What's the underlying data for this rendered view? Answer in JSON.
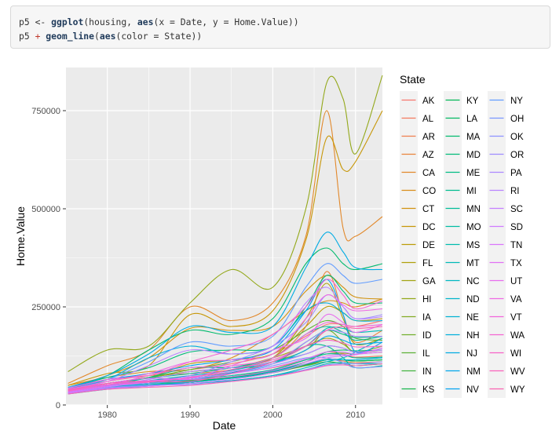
{
  "code": {
    "line1": {
      "assign": "p5 <- ",
      "fn1": "ggplot",
      "mid1": "(housing, ",
      "fn2": "aes",
      "end1": "(x = Date, y = Home.Value))"
    },
    "line2": {
      "obj": "p5 ",
      "plus": "+",
      "fn1": "geom_line",
      "mid": "(",
      "fn2": "aes",
      "end": "(color = State))"
    }
  },
  "chart_data": {
    "type": "line",
    "title": "",
    "xlabel": "Date",
    "ylabel": "Home.Value",
    "xlim": [
      1975.0,
      2013.25
    ],
    "ylim": [
      0,
      860000
    ],
    "x_ticks": [
      1980,
      1990,
      2000,
      2010
    ],
    "x_tick_labels": [
      "1980",
      "1990",
      "2000",
      "2010"
    ],
    "y_ticks": [
      0,
      250000,
      500000,
      750000
    ],
    "y_tick_labels": [
      "0",
      "250000",
      "500000",
      "750000"
    ],
    "grid": true,
    "legend": {
      "title": "State",
      "position": "right"
    },
    "x": [
      1975.25,
      1980,
      1985,
      1990,
      1995,
      2000,
      2004,
      2006.5,
      2008.5,
      2010,
      2013.25
    ],
    "series": [
      {
        "name": "AK",
        "color": "#F8766D",
        "values": [
          42000,
          60000,
          80000,
          90000,
          105000,
          130000,
          175000,
          205000,
          205000,
          200000,
          215000
        ]
      },
      {
        "name": "AL",
        "color": "#F47A5D",
        "values": [
          35000,
          50000,
          62000,
          72000,
          82000,
          95000,
          115000,
          135000,
          130000,
          122000,
          125000
        ]
      },
      {
        "name": "AR",
        "color": "#EF7E4D",
        "values": [
          32000,
          45000,
          55000,
          63000,
          72000,
          84000,
          100000,
          115000,
          112000,
          108000,
          110000
        ]
      },
      {
        "name": "AZ",
        "color": "#E9833B",
        "values": [
          40000,
          60000,
          75000,
          80000,
          90000,
          120000,
          200000,
          340000,
          230000,
          160000,
          190000
        ]
      },
      {
        "name": "CA",
        "color": "#E2882A",
        "values": [
          55000,
          100000,
          140000,
          250000,
          215000,
          260000,
          430000,
          750000,
          450000,
          430000,
          480000
        ]
      },
      {
        "name": "CO",
        "color": "#DA8D1B",
        "values": [
          50000,
          70000,
          85000,
          90000,
          120000,
          180000,
          240000,
          265000,
          260000,
          250000,
          270000
        ]
      },
      {
        "name": "CT",
        "color": "#D1920F",
        "values": [
          45000,
          75000,
          120000,
          195000,
          190000,
          200000,
          290000,
          330000,
          300000,
          275000,
          270000
        ]
      },
      {
        "name": "DC",
        "color": "#C79708",
        "values": [
          50000,
          80000,
          100000,
          230000,
          200000,
          240000,
          420000,
          680000,
          600000,
          620000,
          750000
        ]
      },
      {
        "name": "DE",
        "color": "#BB9C07",
        "values": [
          40000,
          55000,
          70000,
          105000,
          115000,
          130000,
          200000,
          250000,
          235000,
          215000,
          220000
        ]
      },
      {
        "name": "FL",
        "color": "#AFA00B",
        "values": [
          40000,
          55000,
          70000,
          85000,
          95000,
          120000,
          220000,
          310000,
          220000,
          155000,
          170000
        ]
      },
      {
        "name": "GA",
        "color": "#A2A412",
        "values": [
          38000,
          55000,
          70000,
          85000,
          95000,
          120000,
          150000,
          170000,
          155000,
          135000,
          140000
        ]
      },
      {
        "name": "HI",
        "color": "#93A81A",
        "values": [
          85000,
          140000,
          150000,
          260000,
          345000,
          300000,
          500000,
          820000,
          780000,
          640000,
          840000
        ]
      },
      {
        "name": "IA",
        "color": "#83AB23",
        "values": [
          34000,
          45000,
          50000,
          60000,
          72000,
          90000,
          115000,
          130000,
          132000,
          130000,
          135000
        ]
      },
      {
        "name": "ID",
        "color": "#71AE2C",
        "values": [
          36000,
          48000,
          55000,
          62000,
          82000,
          110000,
          140000,
          190000,
          160000,
          135000,
          150000
        ]
      },
      {
        "name": "IL",
        "color": "#5CB136",
        "values": [
          38000,
          55000,
          70000,
          90000,
          110000,
          140000,
          190000,
          215000,
          200000,
          170000,
          165000
        ]
      },
      {
        "name": "IN",
        "color": "#42B440",
        "values": [
          30000,
          42000,
          50000,
          58000,
          70000,
          85000,
          100000,
          110000,
          105000,
          100000,
          105000
        ]
      },
      {
        "name": "KS",
        "color": "#16B64B",
        "values": [
          32000,
          44000,
          52000,
          58000,
          68000,
          82000,
          102000,
          115000,
          115000,
          112000,
          115000
        ]
      },
      {
        "name": "KY",
        "color": "#00B856",
        "values": [
          30000,
          42000,
          50000,
          58000,
          70000,
          86000,
          104000,
          116000,
          115000,
          112000,
          115000
        ]
      },
      {
        "name": "LA",
        "color": "#00B961",
        "values": [
          30000,
          48000,
          58000,
          62000,
          70000,
          86000,
          110000,
          135000,
          140000,
          138000,
          140000
        ]
      },
      {
        "name": "MA",
        "color": "#00BA6D",
        "values": [
          45000,
          75000,
          140000,
          190000,
          180000,
          220000,
          360000,
          400000,
          360000,
          345000,
          360000
        ]
      },
      {
        "name": "MD",
        "color": "#00BB78",
        "values": [
          45000,
          70000,
          95000,
          135000,
          140000,
          150000,
          250000,
          330000,
          290000,
          260000,
          260000
        ]
      },
      {
        "name": "ME",
        "color": "#00BC83",
        "values": [
          35000,
          48000,
          70000,
          95000,
          95000,
          105000,
          160000,
          190000,
          180000,
          172000,
          175000
        ]
      },
      {
        "name": "MI",
        "color": "#00BC8E",
        "values": [
          34000,
          48000,
          55000,
          68000,
          82000,
          110000,
          150000,
          150000,
          120000,
          95000,
          100000
        ]
      },
      {
        "name": "MN",
        "color": "#00BC99",
        "values": [
          38000,
          55000,
          68000,
          80000,
          95000,
          120000,
          180000,
          200000,
          185000,
          165000,
          175000
        ]
      },
      {
        "name": "MO",
        "color": "#00BCA3",
        "values": [
          32000,
          45000,
          55000,
          65000,
          75000,
          90000,
          115000,
          130000,
          128000,
          120000,
          122000
        ]
      },
      {
        "name": "MS",
        "color": "#00BBAD",
        "values": [
          28000,
          40000,
          48000,
          55000,
          62000,
          75000,
          90000,
          105000,
          108000,
          105000,
          105000
        ]
      },
      {
        "name": "MT",
        "color": "#00B9B7",
        "values": [
          35000,
          48000,
          55000,
          60000,
          80000,
          110000,
          150000,
          195000,
          195000,
          185000,
          190000
        ]
      },
      {
        "name": "NC",
        "color": "#00B7C1",
        "values": [
          35000,
          50000,
          62000,
          75000,
          88000,
          110000,
          130000,
          150000,
          145000,
          135000,
          140000
        ]
      },
      {
        "name": "ND",
        "color": "#00B5CA",
        "values": [
          32000,
          45000,
          52000,
          55000,
          62000,
          75000,
          95000,
          110000,
          120000,
          135000,
          170000
        ]
      },
      {
        "name": "NE",
        "color": "#00B2D3",
        "values": [
          30000,
          42000,
          50000,
          58000,
          68000,
          85000,
          105000,
          115000,
          115000,
          115000,
          120000
        ]
      },
      {
        "name": "NH",
        "color": "#00AFDB",
        "values": [
          42000,
          65000,
          120000,
          150000,
          130000,
          150000,
          240000,
          260000,
          235000,
          215000,
          215000
        ]
      },
      {
        "name": "NJ",
        "color": "#00ABE3",
        "values": [
          45000,
          75000,
          130000,
          200000,
          185000,
          200000,
          350000,
          440000,
          390000,
          350000,
          345000
        ]
      },
      {
        "name": "NM",
        "color": "#00A7EA",
        "values": [
          35000,
          50000,
          60000,
          68000,
          82000,
          105000,
          140000,
          175000,
          165000,
          155000,
          160000
        ]
      },
      {
        "name": "NV",
        "color": "#00A3F1",
        "values": [
          45000,
          65000,
          80000,
          100000,
          115000,
          140000,
          240000,
          320000,
          230000,
          135000,
          160000
        ]
      },
      {
        "name": "NY",
        "color": "#619CFF",
        "values": [
          45000,
          65000,
          110000,
          160000,
          150000,
          175000,
          300000,
          360000,
          330000,
          310000,
          320000
        ]
      },
      {
        "name": "OH",
        "color": "#7997FF",
        "values": [
          34000,
          48000,
          55000,
          65000,
          80000,
          100000,
          120000,
          120000,
          108000,
          95000,
          98000
        ]
      },
      {
        "name": "OK",
        "color": "#8D92FF",
        "values": [
          30000,
          44000,
          50000,
          52000,
          60000,
          72000,
          90000,
          102000,
          105000,
          105000,
          110000
        ]
      },
      {
        "name": "OR",
        "color": "#9E8CFF",
        "values": [
          38000,
          55000,
          60000,
          75000,
          110000,
          150000,
          210000,
          280000,
          250000,
          220000,
          230000
        ]
      },
      {
        "name": "PA",
        "color": "#AC88FF",
        "values": [
          36000,
          50000,
          65000,
          85000,
          95000,
          110000,
          160000,
          190000,
          185000,
          175000,
          175000
        ]
      },
      {
        "name": "RI",
        "color": "#B983FF",
        "values": [
          40000,
          60000,
          100000,
          140000,
          130000,
          150000,
          260000,
          300000,
          250000,
          220000,
          225000
        ]
      },
      {
        "name": "SC",
        "color": "#C57EFF",
        "values": [
          34000,
          48000,
          60000,
          72000,
          85000,
          105000,
          130000,
          150000,
          145000,
          135000,
          140000
        ]
      },
      {
        "name": "SD",
        "color": "#D07AFF",
        "values": [
          30000,
          42000,
          48000,
          55000,
          65000,
          82000,
          105000,
          120000,
          125000,
          128000,
          145000
        ]
      },
      {
        "name": "TN",
        "color": "#DA75FC",
        "values": [
          32000,
          46000,
          58000,
          68000,
          80000,
          96000,
          118000,
          135000,
          135000,
          130000,
          135000
        ]
      },
      {
        "name": "TX",
        "color": "#E170F5",
        "values": [
          35000,
          55000,
          68000,
          65000,
          72000,
          88000,
          110000,
          125000,
          128000,
          128000,
          145000
        ]
      },
      {
        "name": "UT",
        "color": "#E86DEE",
        "values": [
          38000,
          55000,
          62000,
          68000,
          100000,
          140000,
          170000,
          230000,
          210000,
          185000,
          205000
        ]
      },
      {
        "name": "VA",
        "color": "#EE6AE5",
        "values": [
          40000,
          60000,
          80000,
          110000,
          115000,
          130000,
          220000,
          280000,
          255000,
          240000,
          245000
        ]
      },
      {
        "name": "VT",
        "color": "#F266DC",
        "values": [
          35000,
          50000,
          75000,
          95000,
          100000,
          120000,
          180000,
          210000,
          205000,
          200000,
          205000
        ]
      },
      {
        "name": "WA",
        "color": "#F564D2",
        "values": [
          42000,
          65000,
          75000,
          110000,
          140000,
          180000,
          250000,
          320000,
          280000,
          245000,
          265000
        ]
      },
      {
        "name": "WI",
        "color": "#F862C7",
        "values": [
          36000,
          52000,
          58000,
          70000,
          90000,
          115000,
          150000,
          165000,
          158000,
          148000,
          150000
        ]
      },
      {
        "name": "WV",
        "color": "#F962BC",
        "values": [
          28000,
          40000,
          45000,
          50000,
          60000,
          72000,
          88000,
          100000,
          102000,
          100000,
          105000
        ]
      },
      {
        "name": "WY",
        "color": "#FA62B1",
        "values": [
          38000,
          55000,
          60000,
          60000,
          80000,
          110000,
          150000,
          190000,
          200000,
          195000,
          200000
        ]
      }
    ]
  }
}
